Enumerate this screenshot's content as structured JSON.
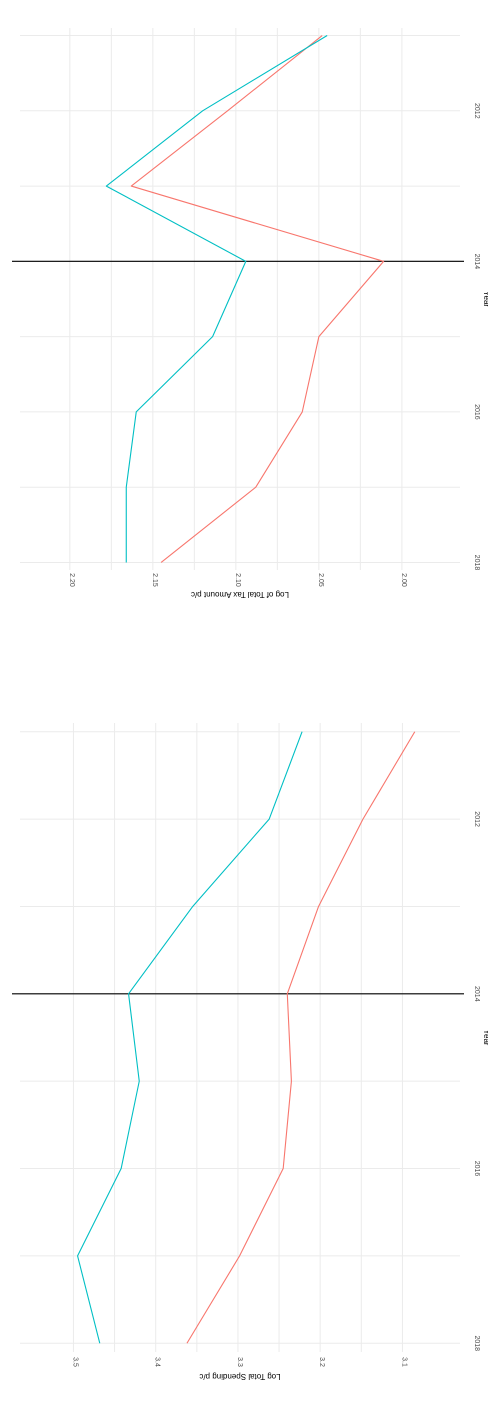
{
  "chart_data": [
    {
      "type": "line",
      "title": "",
      "xlabel": "Year",
      "ylabel": "Log of Total Tax Amount p/c",
      "x": [
        2011,
        2012,
        2013,
        2014,
        2015,
        2016,
        2017,
        2018
      ],
      "xticks": [
        "2012",
        "2014",
        "2016",
        "2018"
      ],
      "xtick_values": [
        2012,
        2014,
        2016,
        2018
      ],
      "yticks": [
        "2.00",
        "2.05",
        "2.10",
        "2.15",
        "2.20"
      ],
      "ytick_values": [
        2.0,
        2.05,
        2.1,
        2.15,
        2.2
      ],
      "xlim": [
        2010.9,
        2018.1
      ],
      "ylim": [
        1.965,
        2.23
      ],
      "vline_x": 2014,
      "grid": true,
      "legend": "none",
      "series": [
        {
          "color": "#F8766D",
          "values": [
            2.048,
            2.105,
            2.163,
            2.011,
            2.05,
            2.06,
            2.088,
            2.145
          ]
        },
        {
          "color": "#00BFC4",
          "values": [
            2.045,
            2.12,
            2.178,
            2.094,
            2.114,
            2.16,
            2.166,
            2.166
          ]
        }
      ]
    },
    {
      "type": "line",
      "title": "",
      "xlabel": "Year",
      "ylabel": "Log Total Spending p/c",
      "x": [
        2011,
        2012,
        2013,
        2014,
        2015,
        2016,
        2017,
        2018
      ],
      "xticks": [
        "2012",
        "2014",
        "2016",
        "2018"
      ],
      "xtick_values": [
        2012,
        2014,
        2016,
        2018
      ],
      "yticks": [
        "3.1",
        "3.2",
        "3.3",
        "3.4",
        "3.5"
      ],
      "ytick_values": [
        3.1,
        3.2,
        3.3,
        3.4,
        3.5
      ],
      "xlim": [
        2010.9,
        2018.1
      ],
      "ylim": [
        3.03,
        3.565
      ],
      "vline_x": 2014,
      "grid": true,
      "legend": "none",
      "series": [
        {
          "color": "#F8766D",
          "values": [
            3.085,
            3.148,
            3.202,
            3.24,
            3.235,
            3.245,
            3.298,
            3.362
          ]
        },
        {
          "color": "#00BFC4",
          "values": [
            3.222,
            3.262,
            3.355,
            3.433,
            3.42,
            3.442,
            3.495,
            3.468
          ]
        }
      ]
    }
  ]
}
